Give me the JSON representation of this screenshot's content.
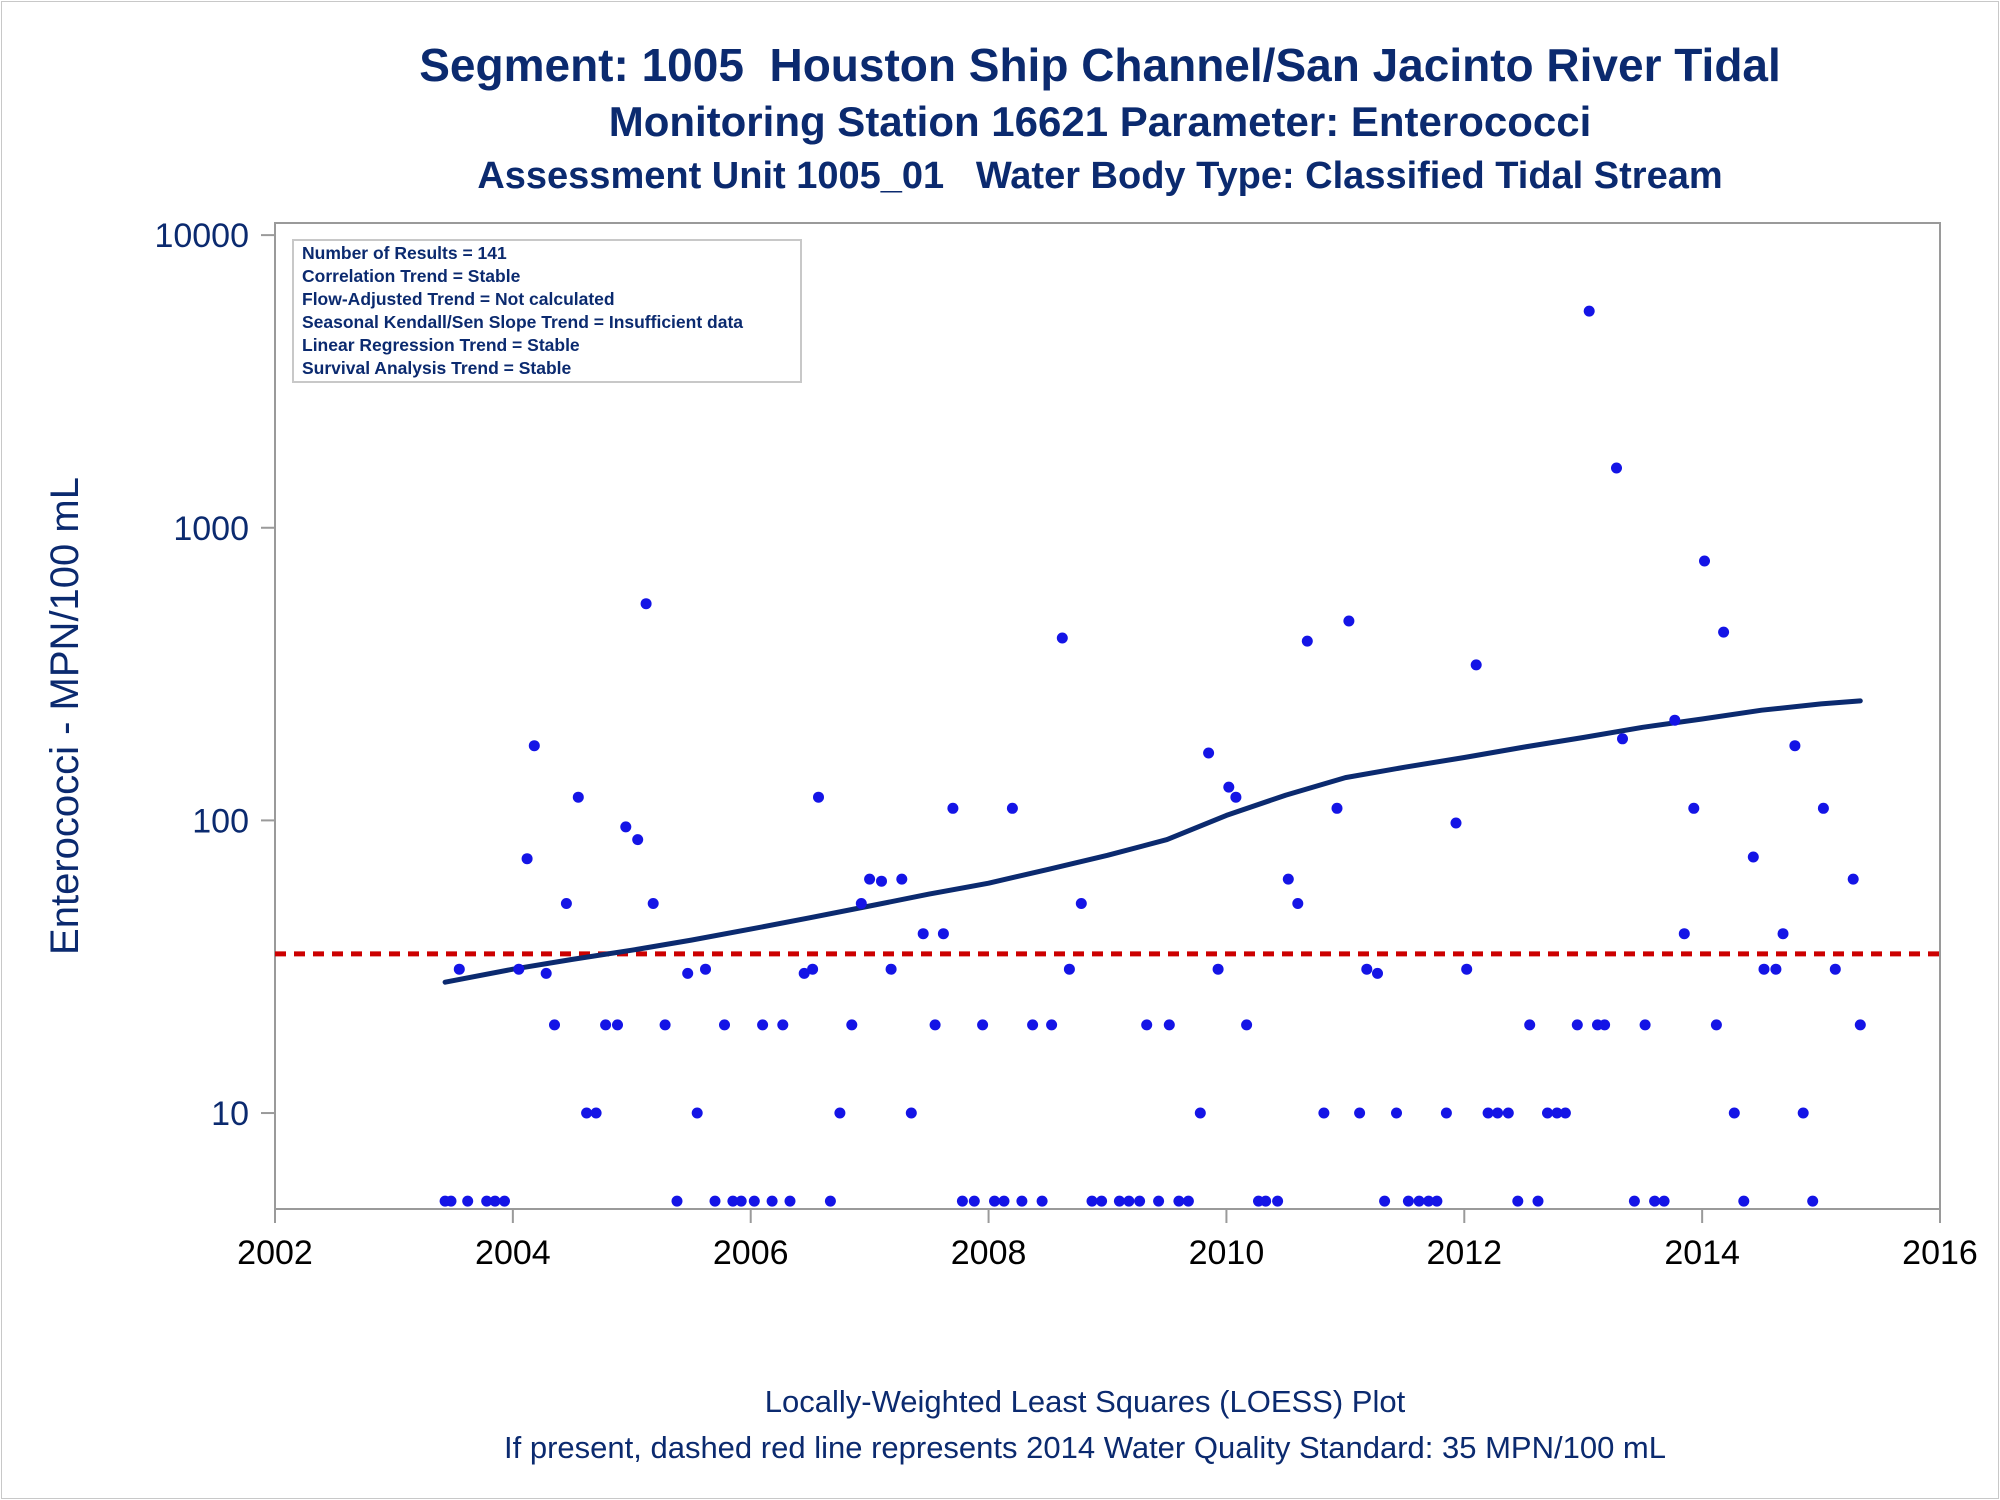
{
  "titles": {
    "line1": "Segment: 1005  Houston Ship Channel/San Jacinto River Tidal",
    "line2": "Monitoring Station 16621 Parameter: Enterococci",
    "line3": "Assessment Unit 1005_01   Water Body Type: Classified Tidal Stream"
  },
  "stats_box": [
    "Number of Results = 141",
    "Correlation Trend = Stable",
    "Flow-Adjusted Trend = Not calculated",
    "Seasonal Kendall/Sen Slope Trend = Insufficient data",
    "Linear Regression Trend = Stable",
    "Survival Analysis Trend = Stable"
  ],
  "footnotes": {
    "line1": "Locally-Weighted Least Squares (LOESS) Plot",
    "line2": "If present, dashed red line represents 2014 Water Quality Standard: 35 MPN/100 mL"
  },
  "colors": {
    "text": "#0b2a6f",
    "points": "#1414e6",
    "loess": "#0b2a6f",
    "standard_line": "#cc0000",
    "frame": "#9a9a9a"
  },
  "chart_data": {
    "type": "scatter",
    "ylabel": "Enterococci - MPN/100 mL",
    "xlabel": "",
    "xlim": [
      2002,
      2016
    ],
    "ylim": [
      4.7,
      11000
    ],
    "y_scale": "log",
    "x_ticks": [
      2002,
      2004,
      2006,
      2008,
      2010,
      2012,
      2014,
      2016
    ],
    "y_ticks": [
      10,
      100,
      1000,
      10000
    ],
    "grid": false,
    "standard_line": {
      "y": 35,
      "style": "dashed",
      "color": "#cc0000"
    },
    "series": [
      {
        "type": "scatter",
        "points": [
          [
            2003.43,
            5
          ],
          [
            2003.48,
            5
          ],
          [
            2003.55,
            31
          ],
          [
            2003.62,
            5
          ],
          [
            2003.78,
            5
          ],
          [
            2003.85,
            5
          ],
          [
            2003.93,
            5
          ],
          [
            2004.05,
            31
          ],
          [
            2004.12,
            74
          ],
          [
            2004.18,
            180
          ],
          [
            2004.28,
            30
          ],
          [
            2004.35,
            20
          ],
          [
            2004.45,
            52
          ],
          [
            2004.55,
            120
          ],
          [
            2004.62,
            10
          ],
          [
            2004.7,
            10
          ],
          [
            2004.78,
            20
          ],
          [
            2004.88,
            20
          ],
          [
            2004.95,
            95
          ],
          [
            2005.05,
            86
          ],
          [
            2005.12,
            550
          ],
          [
            2005.18,
            52
          ],
          [
            2005.28,
            20
          ],
          [
            2005.38,
            5
          ],
          [
            2005.47,
            30
          ],
          [
            2005.55,
            10
          ],
          [
            2005.62,
            31
          ],
          [
            2005.7,
            5
          ],
          [
            2005.78,
            20
          ],
          [
            2005.85,
            5
          ],
          [
            2005.92,
            5
          ],
          [
            2006.03,
            5
          ],
          [
            2006.1,
            20
          ],
          [
            2006.18,
            5
          ],
          [
            2006.27,
            20
          ],
          [
            2006.33,
            5
          ],
          [
            2006.45,
            30
          ],
          [
            2006.52,
            31
          ],
          [
            2006.57,
            120
          ],
          [
            2006.67,
            5
          ],
          [
            2006.75,
            10
          ],
          [
            2006.85,
            20
          ],
          [
            2006.93,
            52
          ],
          [
            2007.0,
            63
          ],
          [
            2007.1,
            62
          ],
          [
            2007.18,
            31
          ],
          [
            2007.27,
            63
          ],
          [
            2007.35,
            10
          ],
          [
            2007.45,
            41
          ],
          [
            2007.55,
            20
          ],
          [
            2007.62,
            41
          ],
          [
            2007.7,
            110
          ],
          [
            2007.78,
            5
          ],
          [
            2007.88,
            5
          ],
          [
            2007.95,
            20
          ],
          [
            2008.05,
            5
          ],
          [
            2008.13,
            5
          ],
          [
            2008.2,
            110
          ],
          [
            2008.28,
            5
          ],
          [
            2008.37,
            20
          ],
          [
            2008.45,
            5
          ],
          [
            2008.53,
            20
          ],
          [
            2008.62,
            420
          ],
          [
            2008.68,
            31
          ],
          [
            2008.78,
            52
          ],
          [
            2008.87,
            5
          ],
          [
            2008.95,
            5
          ],
          [
            2009.1,
            5
          ],
          [
            2009.18,
            5
          ],
          [
            2009.27,
            5
          ],
          [
            2009.33,
            20
          ],
          [
            2009.43,
            5
          ],
          [
            2009.52,
            20
          ],
          [
            2009.6,
            5
          ],
          [
            2009.68,
            5
          ],
          [
            2009.78,
            10
          ],
          [
            2009.85,
            170
          ],
          [
            2009.93,
            31
          ],
          [
            2010.02,
            130
          ],
          [
            2010.08,
            120
          ],
          [
            2010.17,
            20
          ],
          [
            2010.27,
            5
          ],
          [
            2010.33,
            5
          ],
          [
            2010.43,
            5
          ],
          [
            2010.52,
            63
          ],
          [
            2010.6,
            52
          ],
          [
            2010.68,
            410
          ],
          [
            2010.82,
            10
          ],
          [
            2010.93,
            110
          ],
          [
            2011.03,
            480
          ],
          [
            2011.12,
            10
          ],
          [
            2011.18,
            31
          ],
          [
            2011.27,
            30
          ],
          [
            2011.33,
            5
          ],
          [
            2011.43,
            10
          ],
          [
            2011.53,
            5
          ],
          [
            2011.62,
            5
          ],
          [
            2011.7,
            5
          ],
          [
            2011.77,
            5
          ],
          [
            2011.85,
            10
          ],
          [
            2011.93,
            98
          ],
          [
            2012.02,
            31
          ],
          [
            2012.1,
            340
          ],
          [
            2012.2,
            10
          ],
          [
            2012.28,
            10
          ],
          [
            2012.37,
            10
          ],
          [
            2012.45,
            5
          ],
          [
            2012.55,
            20
          ],
          [
            2012.62,
            5
          ],
          [
            2012.7,
            10
          ],
          [
            2012.78,
            10
          ],
          [
            2012.85,
            10
          ],
          [
            2012.95,
            20
          ],
          [
            2013.05,
            5500
          ],
          [
            2013.12,
            20
          ],
          [
            2013.18,
            20
          ],
          [
            2013.28,
            1600
          ],
          [
            2013.33,
            190
          ],
          [
            2013.43,
            5
          ],
          [
            2013.52,
            20
          ],
          [
            2013.6,
            5
          ],
          [
            2013.68,
            5
          ],
          [
            2013.77,
            220
          ],
          [
            2013.85,
            41
          ],
          [
            2013.93,
            110
          ],
          [
            2014.02,
            770
          ],
          [
            2014.12,
            20
          ],
          [
            2014.18,
            440
          ],
          [
            2014.27,
            10
          ],
          [
            2014.35,
            5
          ],
          [
            2014.43,
            75
          ],
          [
            2014.52,
            31
          ],
          [
            2014.62,
            31
          ],
          [
            2014.68,
            41
          ],
          [
            2014.78,
            180
          ],
          [
            2014.85,
            10
          ],
          [
            2014.93,
            5
          ],
          [
            2015.02,
            110
          ],
          [
            2015.12,
            31
          ],
          [
            2015.27,
            63
          ],
          [
            2015.33,
            20
          ]
        ]
      },
      {
        "type": "line",
        "name": "LOESS",
        "points": [
          [
            2003.43,
            28
          ],
          [
            2004.0,
            31
          ],
          [
            2004.5,
            33.5
          ],
          [
            2005.0,
            36
          ],
          [
            2005.5,
            39
          ],
          [
            2006.0,
            42.5
          ],
          [
            2006.5,
            46.5
          ],
          [
            2007.0,
            51
          ],
          [
            2007.5,
            56
          ],
          [
            2008.0,
            61
          ],
          [
            2008.5,
            68
          ],
          [
            2009.0,
            76
          ],
          [
            2009.5,
            86
          ],
          [
            2010.0,
            104
          ],
          [
            2010.5,
            122
          ],
          [
            2011.0,
            140
          ],
          [
            2011.5,
            152
          ],
          [
            2012.0,
            164
          ],
          [
            2012.5,
            178
          ],
          [
            2013.0,
            192
          ],
          [
            2013.5,
            208
          ],
          [
            2014.0,
            222
          ],
          [
            2014.5,
            238
          ],
          [
            2015.0,
            250
          ],
          [
            2015.33,
            256
          ]
        ]
      }
    ]
  }
}
